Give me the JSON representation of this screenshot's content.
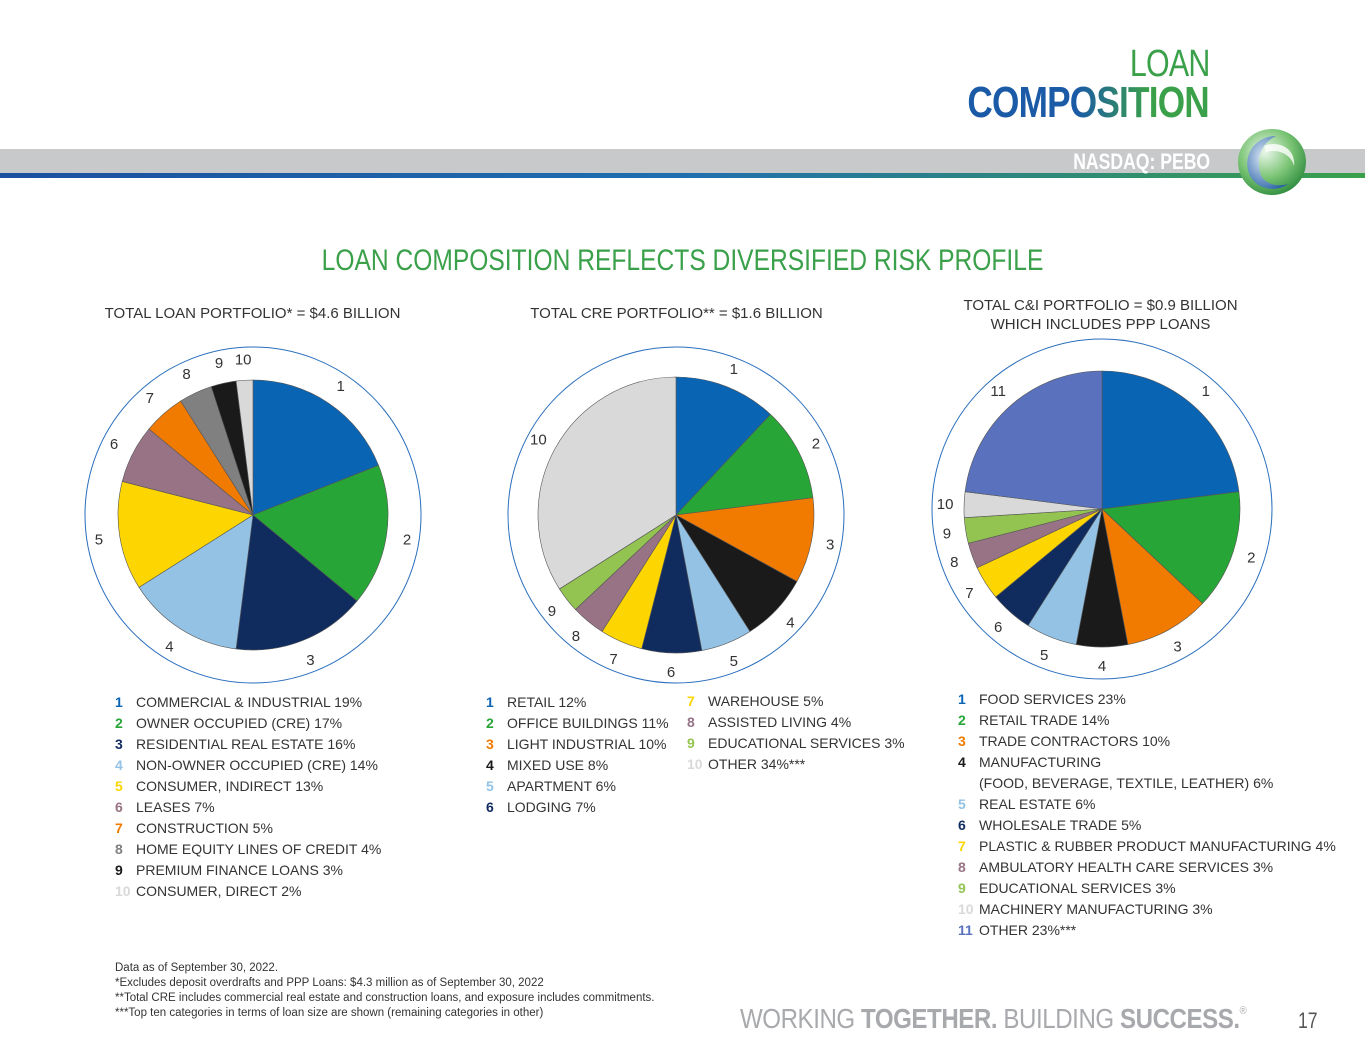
{
  "header": {
    "title_line1": "LOAN",
    "title_line2": "COMPOSITION",
    "ticker": "NASDAQ: PEBO"
  },
  "headline": "LOAN COMPOSITION REFLECTS DIVERSIFIED RISK PROFILE",
  "colors": {
    "blue": "#0a64b4",
    "green": "#27a536",
    "navy": "#102b5e",
    "lightblue": "#93c2e4",
    "yellow": "#fdd500",
    "mauve": "#977385",
    "orange": "#f17a00",
    "gray": "#808080",
    "black": "#1a1a1a",
    "lightgray": "#d9d9d9",
    "periwinkle": "#5a72bd",
    "brand_green": "#3aa04a"
  },
  "chart_data": [
    {
      "type": "pie",
      "title": "TOTAL LOAN PORTFOLIO* = $4.6 BILLION",
      "slices": [
        {
          "label": "1",
          "name": "COMMERCIAL & INDUSTRIAL 19%",
          "value": 19,
          "color": "blue"
        },
        {
          "label": "2",
          "name": "OWNER OCCUPIED (CRE) 17%",
          "value": 17,
          "color": "green"
        },
        {
          "label": "3",
          "name": "RESIDENTIAL REAL ESTATE 16%",
          "value": 16,
          "color": "navy"
        },
        {
          "label": "4",
          "name": "NON-OWNER OCCUPIED (CRE) 14%",
          "value": 14,
          "color": "lightblue"
        },
        {
          "label": "5",
          "name": "CONSUMER, INDIRECT 13%",
          "value": 13,
          "color": "yellow"
        },
        {
          "label": "6",
          "name": "LEASES 7%",
          "value": 7,
          "color": "mauve"
        },
        {
          "label": "7",
          "name": "CONSTRUCTION 5%",
          "value": 5,
          "color": "orange"
        },
        {
          "label": "8",
          "name": "HOME EQUITY LINES OF CREDIT 4%",
          "value": 4,
          "color": "gray"
        },
        {
          "label": "9",
          "name": "PREMIUM FINANCE LOANS 3%",
          "value": 3,
          "color": "black"
        },
        {
          "label": "10",
          "name": "CONSUMER, DIRECT 2%",
          "value": 2,
          "color": "lightgray"
        }
      ]
    },
    {
      "type": "pie",
      "title": "TOTAL CRE PORTFOLIO** = $1.6 BILLION",
      "slices": [
        {
          "label": "1",
          "name": "RETAIL 12%",
          "value": 12,
          "color": "blue"
        },
        {
          "label": "2",
          "name": "OFFICE BUILDINGS 11%",
          "value": 11,
          "color": "green"
        },
        {
          "label": "3",
          "name": "LIGHT INDUSTRIAL 10%",
          "value": 10,
          "color": "orange"
        },
        {
          "label": "4",
          "name": "MIXED USE 8%",
          "value": 8,
          "color": "black"
        },
        {
          "label": "5",
          "name": "APARTMENT 6%",
          "value": 6,
          "color": "lightblue"
        },
        {
          "label": "6",
          "name": "LODGING 7%",
          "value": 7,
          "color": "navy"
        },
        {
          "label": "7",
          "name": "WAREHOUSE 5%",
          "value": 5,
          "color": "yellow"
        },
        {
          "label": "8",
          "name": "ASSISTED LIVING 4%",
          "value": 4,
          "color": "mauve"
        },
        {
          "label": "9",
          "name": "EDUCATIONAL SERVICES 3%",
          "value": 3,
          "color": "green_light"
        },
        {
          "label": "10",
          "name": "OTHER 34%***",
          "value": 34,
          "color": "lightgray"
        }
      ]
    },
    {
      "type": "pie",
      "title": "TOTAL C&I PORTFOLIO = $0.9 BILLION",
      "subtitle": "WHICH INCLUDES PPP LOANS",
      "slices": [
        {
          "label": "1",
          "name": "FOOD SERVICES 23%",
          "value": 23,
          "color": "blue"
        },
        {
          "label": "2",
          "name": "RETAIL TRADE 14%",
          "value": 14,
          "color": "green"
        },
        {
          "label": "3",
          "name": "TRADE CONTRACTORS 10%",
          "value": 10,
          "color": "orange"
        },
        {
          "label": "4",
          "name": "MANUFACTURING",
          "name2": "(FOOD, BEVERAGE, TEXTILE, LEATHER) 6%",
          "value": 6,
          "color": "black"
        },
        {
          "label": "5",
          "name": "REAL ESTATE 6%",
          "value": 6,
          "color": "lightblue"
        },
        {
          "label": "6",
          "name": "WHOLESALE TRADE 5%",
          "value": 5,
          "color": "navy"
        },
        {
          "label": "7",
          "name": "PLASTIC & RUBBER PRODUCT MANUFACTURING 4%",
          "value": 4,
          "color": "yellow"
        },
        {
          "label": "8",
          "name": "AMBULATORY HEALTH CARE SERVICES 3%",
          "value": 3,
          "color": "mauve"
        },
        {
          "label": "9",
          "name": "EDUCATIONAL SERVICES 3%",
          "value": 3,
          "color": "green_light"
        },
        {
          "label": "10",
          "name": "MACHINERY MANUFACTURING 3%",
          "value": 3,
          "color": "lightgray"
        },
        {
          "label": "11",
          "name": "OTHER 23%***",
          "value": 23,
          "color": "periwinkle"
        }
      ]
    }
  ],
  "footnotes": [
    "Data as of September 30, 2022.",
    "*Excludes deposit overdrafts and PPP Loans: $4.3 million as of September 30, 2022",
    "**Total CRE includes commercial real estate and construction loans, and exposure includes commitments.",
    "***Top ten categories in terms of loan size are shown (remaining categories in other)"
  ],
  "footer": {
    "tag_part1": "WORKING ",
    "tag_part2": "TOGETHER.",
    "tag_part3": " BUILDING ",
    "tag_part4": "SUCCESS.",
    "page": "17"
  }
}
